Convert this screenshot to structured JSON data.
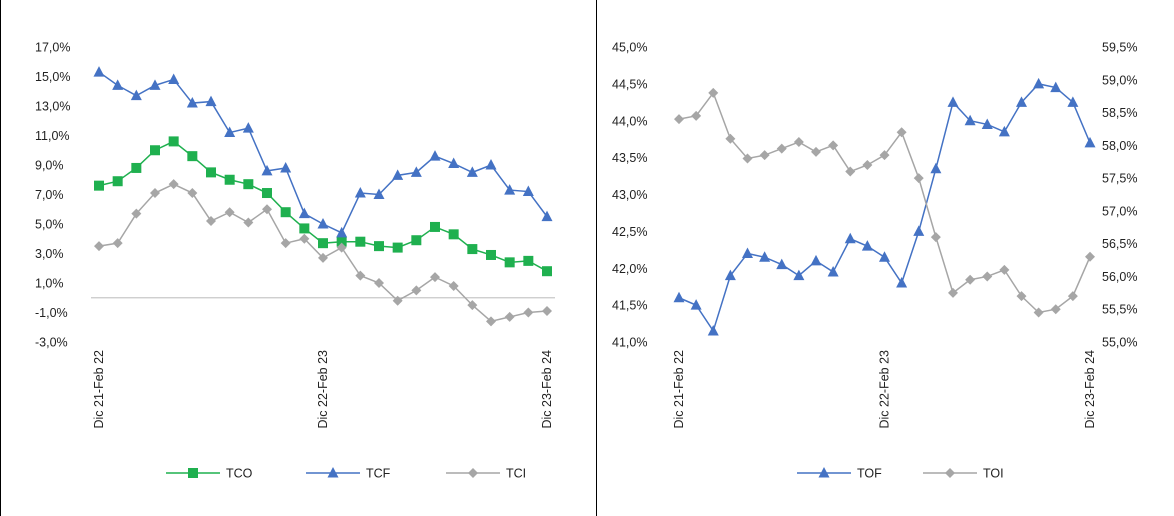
{
  "chart_data": [
    {
      "type": "line",
      "x": [
        "Dic 21-Feb 22",
        "",
        "",
        "",
        "",
        "",
        "",
        "",
        "",
        "",
        "",
        "",
        "Dic 22-Feb 23",
        "",
        "",
        "",
        "",
        "",
        "",
        "",
        "",
        "",
        "",
        "",
        "Dic 23-Feb 24"
      ],
      "yticks": [
        "17,0%",
        "15,0%",
        "13,0%",
        "11,0%",
        "9,0%",
        "7,0%",
        "5,0%",
        "3,0%",
        "1,0%",
        "-1,0%",
        "-3,0%"
      ],
      "ylim": [
        -3,
        17
      ],
      "series": [
        {
          "name": "TCO",
          "color": "#1fb04f",
          "marker": "square",
          "values": [
            7.6,
            7.9,
            8.8,
            10.0,
            10.6,
            9.6,
            8.5,
            8.0,
            7.7,
            7.1,
            5.8,
            4.7,
            3.7,
            3.8,
            3.8,
            3.5,
            3.4,
            3.9,
            4.8,
            4.3,
            3.3,
            2.9,
            2.4,
            2.5,
            1.8
          ]
        },
        {
          "name": "TCF",
          "color": "#4472c4",
          "marker": "triangle",
          "values": [
            15.3,
            14.4,
            13.7,
            14.4,
            14.8,
            13.2,
            13.3,
            11.2,
            11.5,
            8.6,
            8.8,
            5.7,
            5.0,
            4.4,
            7.1,
            7.0,
            8.3,
            8.5,
            9.6,
            9.1,
            8.5,
            9.0,
            7.3,
            7.2,
            5.5
          ]
        },
        {
          "name": "TCI",
          "color": "#a6a6a6",
          "marker": "diamond",
          "values": [
            3.5,
            3.7,
            5.7,
            7.1,
            7.7,
            7.1,
            5.2,
            5.8,
            5.1,
            6.0,
            3.7,
            4.0,
            2.7,
            3.4,
            1.5,
            1.0,
            -0.2,
            0.5,
            1.4,
            0.8,
            -0.5,
            -1.6,
            -1.3,
            -1.0,
            -0.9
          ]
        }
      ],
      "legend": "bottom"
    },
    {
      "type": "line",
      "x": [
        "Dic 21-Feb 22",
        "",
        "",
        "",
        "",
        "",
        "",
        "",
        "",
        "",
        "",
        "",
        "Dic 22-Feb 23",
        "",
        "",
        "",
        "",
        "",
        "",
        "",
        "",
        "",
        "",
        "",
        "Dic 23-Feb 24"
      ],
      "yticks_left": [
        "45,0%",
        "44,5%",
        "44,0%",
        "43,5%",
        "43,0%",
        "42,5%",
        "42,0%",
        "41,5%",
        "41,0%"
      ],
      "yticks_right": [
        "59,5%",
        "59,0%",
        "58,5%",
        "58,0%",
        "57,5%",
        "57,0%",
        "56,5%",
        "56,0%",
        "55,5%",
        "55,0%"
      ],
      "ylim_left": [
        41,
        45
      ],
      "ylim_right": [
        55,
        59.5
      ],
      "series": [
        {
          "name": "TOF",
          "color": "#4472c4",
          "marker": "triangle",
          "axis": "left",
          "values": [
            41.6,
            41.5,
            41.15,
            41.9,
            42.2,
            42.15,
            42.05,
            41.9,
            42.1,
            41.95,
            42.4,
            42.3,
            42.15,
            41.8,
            42.5,
            43.35,
            44.25,
            44.0,
            43.95,
            43.85,
            44.25,
            44.5,
            44.45,
            44.25,
            43.7
          ]
        },
        {
          "name": "TOI",
          "color": "#a6a6a6",
          "marker": "diamond",
          "axis": "right",
          "values": [
            58.4,
            58.45,
            58.8,
            58.1,
            57.8,
            57.85,
            57.95,
            58.05,
            57.9,
            58.0,
            57.6,
            57.7,
            57.85,
            58.2,
            57.5,
            56.6,
            55.75,
            55.95,
            56.0,
            56.1,
            55.7,
            55.45,
            55.5,
            55.7,
            56.3
          ]
        }
      ],
      "legend": "bottom"
    }
  ]
}
